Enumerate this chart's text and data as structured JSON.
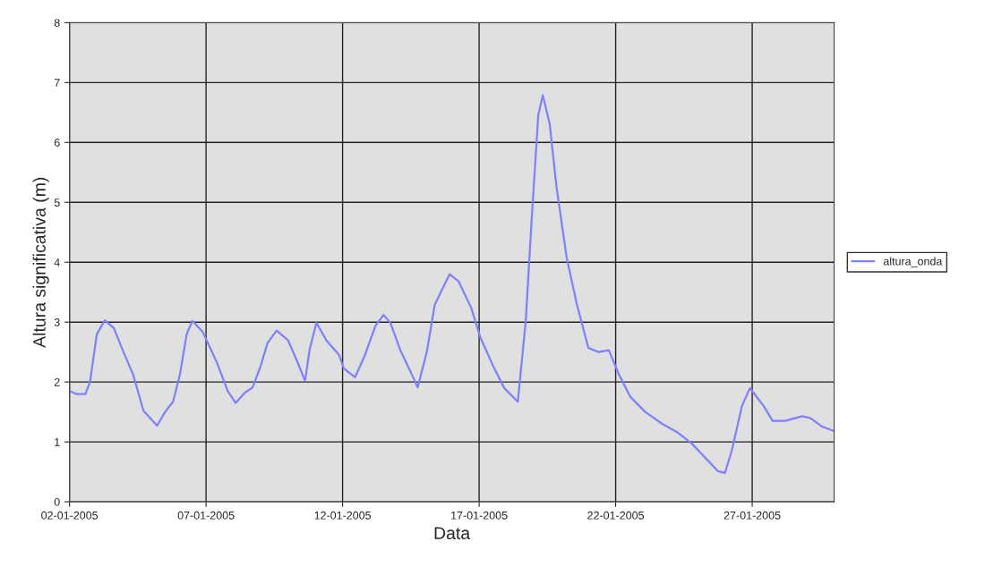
{
  "chart_data": {
    "type": "line",
    "xlabel": "Data",
    "ylabel": "Altura significativa (m)",
    "x": [
      "2005-01-02T00:00",
      "2005-01-02T06:00",
      "2005-01-02T14:00",
      "2005-01-02T18:00",
      "2005-01-03T00:00",
      "2005-01-03T07:00",
      "2005-01-03T15:00",
      "2005-01-03T23:00",
      "2005-01-04T08:00",
      "2005-01-04T17:00",
      "2005-01-05T05:00",
      "2005-01-05T12:00",
      "2005-01-05T19:00",
      "2005-01-06T01:00",
      "2005-01-06T07:00",
      "2005-01-06T12:00",
      "2005-01-06T21:00",
      "2005-01-07T09:00",
      "2005-01-07T19:00",
      "2005-01-08T02:00",
      "2005-01-08T10:00",
      "2005-01-08T17:00",
      "2005-01-09T00:00",
      "2005-01-09T06:00",
      "2005-01-09T14:00",
      "2005-01-10T00:00",
      "2005-01-10T08:00",
      "2005-01-10T15:00",
      "2005-01-10T19:00",
      "2005-01-11T01:00",
      "2005-01-11T10:00",
      "2005-01-11T21:00",
      "2005-01-12T01:00",
      "2005-01-12T11:00",
      "2005-01-12T19:00",
      "2005-01-13T05:00",
      "2005-01-13T12:00",
      "2005-01-13T18:00",
      "2005-01-14T03:00",
      "2005-01-14T13:00",
      "2005-01-14T18:00",
      "2005-01-15T02:00",
      "2005-01-15T09:00",
      "2005-01-15T22:00",
      "2005-01-16T06:00",
      "2005-01-16T17:00",
      "2005-01-17T01:00",
      "2005-01-17T13:00",
      "2005-01-17T22:00",
      "2005-01-18T10:00",
      "2005-01-18T17:00",
      "2005-01-18T22:00",
      "2005-01-19T04:00",
      "2005-01-19T08:00",
      "2005-01-19T14:00",
      "2005-01-19T20:00",
      "2005-01-20T05:00",
      "2005-01-20T14:00",
      "2005-01-21T00:00",
      "2005-01-21T09:00",
      "2005-01-21T18:00",
      "2005-01-22T03:00",
      "2005-01-22T13:00",
      "2005-01-23T02:00",
      "2005-01-23T17:00",
      "2005-01-24T07:00",
      "2005-01-24T19:00",
      "2005-01-25T06:00",
      "2005-01-25T18:00",
      "2005-01-26T00:00",
      "2005-01-26T06:00",
      "2005-01-26T15:00",
      "2005-01-26T22:00",
      "2005-01-27T10:00",
      "2005-01-27T18:00",
      "2005-01-28T05:00",
      "2005-01-28T20:00",
      "2005-01-29T03:00",
      "2005-01-29T13:00",
      "2005-01-30T00:00"
    ],
    "series": [
      {
        "name": "altura_onda",
        "color": "#7f7fff",
        "values": [
          1.85,
          1.8,
          1.8,
          2.0,
          2.8,
          3.03,
          2.9,
          2.52,
          2.12,
          1.52,
          1.27,
          1.5,
          1.67,
          2.12,
          2.8,
          3.02,
          2.84,
          2.35,
          1.85,
          1.65,
          1.82,
          1.91,
          2.27,
          2.65,
          2.86,
          2.7,
          2.35,
          2.02,
          2.54,
          2.99,
          2.69,
          2.45,
          2.23,
          2.08,
          2.42,
          2.94,
          3.12,
          2.99,
          2.52,
          2.12,
          1.91,
          2.5,
          3.29,
          3.8,
          3.68,
          3.24,
          2.75,
          2.24,
          1.9,
          1.67,
          3.02,
          4.66,
          6.46,
          6.79,
          6.31,
          5.26,
          4.07,
          3.29,
          2.57,
          2.5,
          2.53,
          2.12,
          1.75,
          1.5,
          1.3,
          1.15,
          0.97,
          0.75,
          0.51,
          0.48,
          0.85,
          1.6,
          1.9,
          1.6,
          1.35,
          1.35,
          1.43,
          1.4,
          1.26,
          1.18
        ]
      }
    ],
    "xlim": [
      "2005-01-02",
      "2005-01-30"
    ],
    "xticks": [
      {
        "value": "2005-01-02",
        "label": "02-01-2005"
      },
      {
        "value": "2005-01-07",
        "label": "07-01-2005"
      },
      {
        "value": "2005-01-12",
        "label": "12-01-2005"
      },
      {
        "value": "2005-01-17",
        "label": "17-01-2005"
      },
      {
        "value": "2005-01-22",
        "label": "22-01-2005"
      },
      {
        "value": "2005-01-27",
        "label": "27-01-2005"
      }
    ],
    "ylim": [
      0,
      8
    ],
    "yticks": [
      0,
      1,
      2,
      3,
      4,
      5,
      6,
      7,
      8
    ],
    "grid": true,
    "legend": "right",
    "marker": "none",
    "line_style": "solid"
  }
}
